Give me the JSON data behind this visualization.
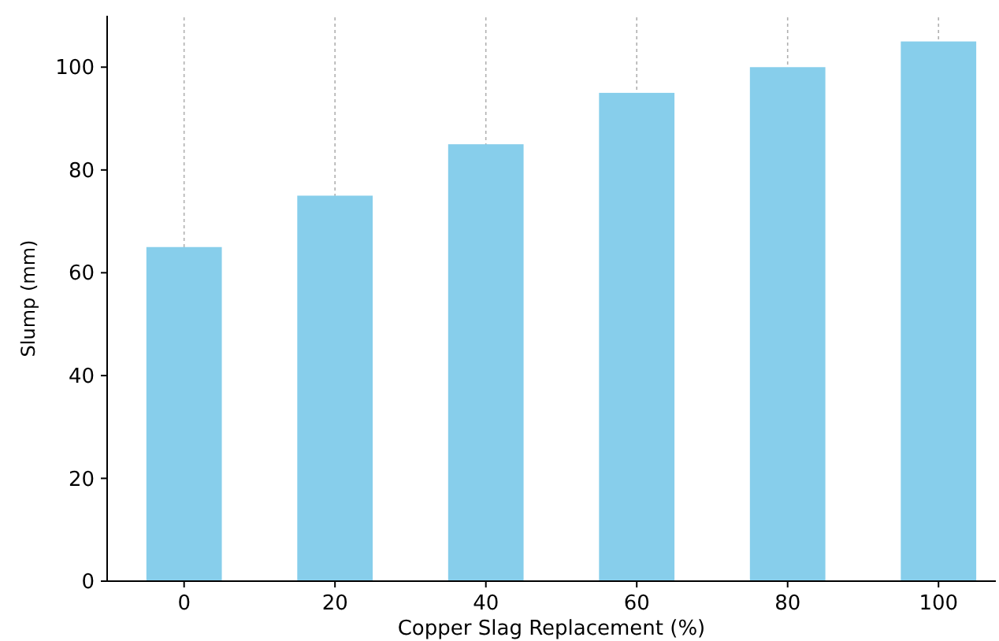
{
  "chart_data": {
    "type": "bar",
    "xlabel": "Copper Slag Replacement (%)",
    "ylabel": "Slump (mm)",
    "categories": [
      "0",
      "20",
      "40",
      "60",
      "80",
      "100"
    ],
    "values": [
      65,
      75,
      85,
      95,
      100,
      105
    ],
    "color": "#87ceeb",
    "ylim": [
      0,
      110
    ],
    "yticks": [
      0,
      20,
      40,
      60,
      80,
      100
    ],
    "grid": "x"
  }
}
